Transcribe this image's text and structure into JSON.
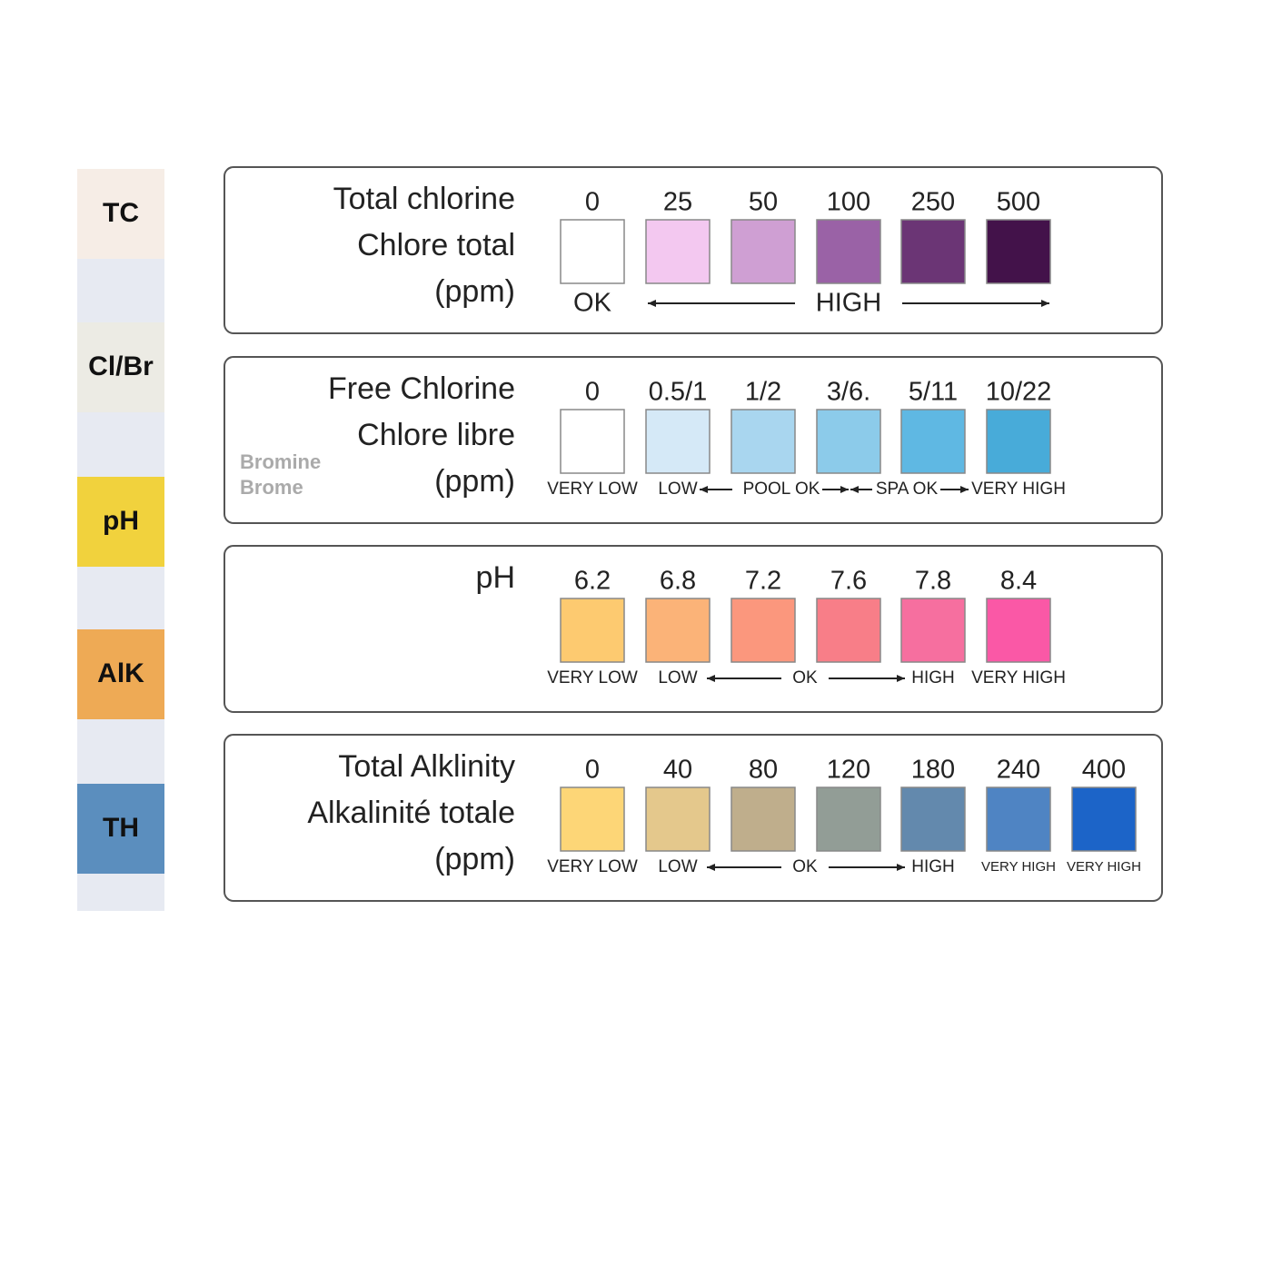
{
  "strip": [
    {
      "label": "TC",
      "color": "#f6ede6"
    },
    {
      "label": "Cl/Br",
      "color": "#ecebe4"
    },
    {
      "label": "pH",
      "color": "#f1d23d"
    },
    {
      "label": "AlK",
      "color": "#eeaa55"
    },
    {
      "label": "TH",
      "color": "#5b8ebe"
    }
  ],
  "rows": [
    {
      "title": [
        "Total chlorine",
        "Chlore total",
        "(ppm)"
      ],
      "values": [
        "0",
        "25",
        "50",
        "100",
        "250",
        "500"
      ],
      "colors": [
        "#ffffff",
        "#f3c8f0",
        "#cf9fd3",
        "#9a62a6",
        "#6b3575",
        "#43124a"
      ],
      "status": [
        "OK",
        "HIGH"
      ]
    },
    {
      "title": [
        "Free Chlorine",
        "Chlore libre",
        "(ppm)"
      ],
      "note": [
        "Bromine",
        "Brome"
      ],
      "values": [
        "0",
        "0.5/1",
        "1/2",
        "3/6.",
        "5/11",
        "10/22"
      ],
      "colors": [
        "#ffffff",
        "#d5e9f7",
        "#a9d6ef",
        "#8ccbea",
        "#5fb8e3",
        "#48abd9"
      ],
      "status": [
        "VERY LOW",
        "LOW",
        "POOL OK",
        "SPA OK",
        "VERY HIGH"
      ]
    },
    {
      "title": [
        "pH"
      ],
      "values": [
        "6.2",
        "6.8",
        "7.2",
        "7.6",
        "7.8",
        "8.4"
      ],
      "colors": [
        "#fdca70",
        "#fbb378",
        "#fb977d",
        "#f87e88",
        "#f66f9f",
        "#fa58a6"
      ],
      "status": [
        "VERY LOW",
        "LOW",
        "OK",
        "HIGH",
        "VERY HIGH"
      ]
    },
    {
      "title": [
        "Total Alklinity",
        "Alkalinité totale",
        "(ppm)"
      ],
      "values": [
        "0",
        "40",
        "80",
        "120",
        "180",
        "240",
        "400"
      ],
      "colors": [
        "#fdd677",
        "#e4c88c",
        "#bfae8c",
        "#929d96",
        "#6389ad",
        "#4f84c3",
        "#1c64c8"
      ],
      "status": [
        "VERY LOW",
        "LOW",
        "OK",
        "HIGH",
        "VERY HIGH",
        "VERY HIGH"
      ]
    }
  ]
}
